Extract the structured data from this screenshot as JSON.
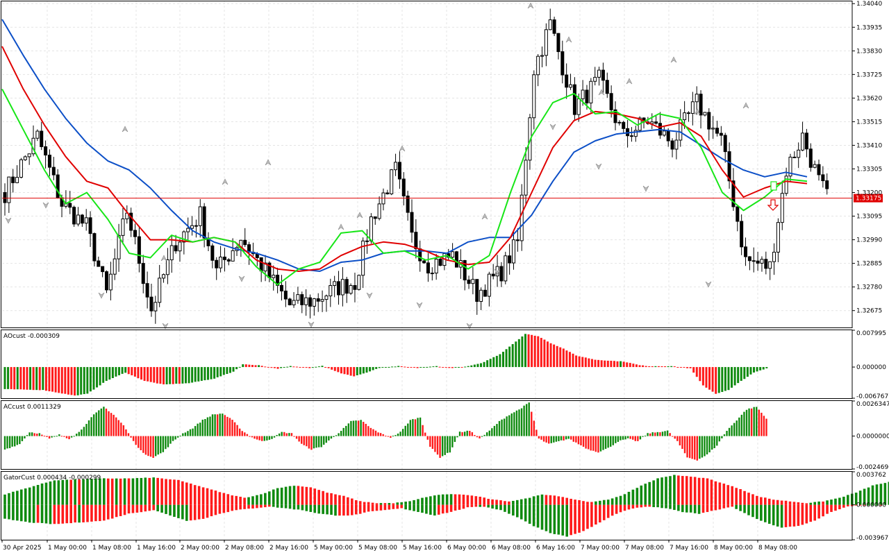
{
  "chart_data": [
    {
      "type": "candlestick",
      "title": "",
      "ylim": [
        1.326,
        1.3405
      ],
      "y_ticks": [
        "1.34040",
        "1.33935",
        "1.33830",
        "1.33725",
        "1.33620",
        "1.33515",
        "1.33410",
        "1.33305",
        "1.33200",
        "1.33095",
        "1.32990",
        "1.32885",
        "1.32780",
        "1.32675"
      ],
      "y_tick_values": [
        1.3404,
        1.33935,
        1.3383,
        1.33725,
        1.3362,
        1.33515,
        1.3341,
        1.33305,
        1.332,
        1.33095,
        1.3299,
        1.32885,
        1.3278,
        1.32675
      ],
      "current_price": 1.33175,
      "current_price_label": "1.33175",
      "x_labels": [
        "30 Apr 2025",
        "1 May 00:00",
        "1 May 08:00",
        "1 May 16:00",
        "2 May 00:00",
        "2 May 08:00",
        "2 May 16:00",
        "5 May 00:00",
        "5 May 08:00",
        "5 May 16:00",
        "6 May 00:00",
        "6 May 08:00",
        "6 May 16:00",
        "7 May 00:00",
        "7 May 08:00",
        "7 May 16:00",
        "8 May 00:00",
        "8 May 08:00"
      ],
      "anchors": [
        [
          0,
          1.332
        ],
        [
          8,
          1.3345
        ],
        [
          14,
          1.3315
        ],
        [
          20,
          1.3305
        ],
        [
          25,
          1.3275
        ],
        [
          30,
          1.3312
        ],
        [
          36,
          1.3268
        ],
        [
          42,
          1.3298
        ],
        [
          48,
          1.331
        ],
        [
          52,
          1.3285
        ],
        [
          58,
          1.33
        ],
        [
          64,
          1.3285
        ],
        [
          70,
          1.327
        ],
        [
          76,
          1.3272
        ],
        [
          82,
          1.3278
        ],
        [
          86,
          1.328
        ],
        [
          90,
          1.3308
        ],
        [
          96,
          1.333
        ],
        [
          100,
          1.33
        ],
        [
          104,
          1.3288
        ],
        [
          110,
          1.3292
        ],
        [
          116,
          1.3275
        ],
        [
          122,
          1.3285
        ],
        [
          126,
          1.3298
        ],
        [
          130,
          1.3375
        ],
        [
          134,
          1.3395
        ],
        [
          140,
          1.3358
        ],
        [
          146,
          1.337
        ],
        [
          152,
          1.3345
        ],
        [
          158,
          1.3352
        ],
        [
          164,
          1.3342
        ],
        [
          170,
          1.336
        ],
        [
          176,
          1.3343
        ],
        [
          182,
          1.329
        ],
        [
          188,
          1.3287
        ],
        [
          192,
          1.333
        ],
        [
          196,
          1.3345
        ],
        [
          200,
          1.3325
        ],
        [
          202,
          1.3318
        ]
      ],
      "series": [
        {
          "name": "blue",
          "color": "#0c4fc7",
          "values": [
            1.3397,
            1.3381,
            1.3366,
            1.3353,
            1.3342,
            1.3334,
            1.333,
            1.3322,
            1.3312,
            1.3303,
            1.3298,
            1.3295,
            1.3293,
            1.329,
            1.3286,
            1.3285,
            1.3289,
            1.329,
            1.3293,
            1.3294,
            1.3294,
            1.3293,
            1.3298,
            1.33,
            1.33,
            1.331,
            1.3325,
            1.3338,
            1.3343,
            1.3346,
            1.3347,
            1.3348,
            1.3347,
            1.3341,
            1.3335,
            1.333,
            1.3327,
            1.3329,
            1.3327
          ]
        },
        {
          "name": "red",
          "color": "#e00000",
          "values": [
            1.3385,
            1.3366,
            1.335,
            1.3336,
            1.3325,
            1.3322,
            1.331,
            1.3299,
            1.3299,
            1.3298,
            1.33,
            1.3298,
            1.329,
            1.3286,
            1.3285,
            1.3286,
            1.3292,
            1.3296,
            1.3298,
            1.3297,
            1.3294,
            1.329,
            1.3288,
            1.3289,
            1.33,
            1.332,
            1.334,
            1.3352,
            1.3356,
            1.3355,
            1.3353,
            1.3349,
            1.3351,
            1.3345,
            1.333,
            1.3318,
            1.3322,
            1.3325,
            1.3324
          ]
        },
        {
          "name": "green",
          "color": "#17e617",
          "values": [
            1.3366,
            1.3348,
            1.333,
            1.3315,
            1.332,
            1.3308,
            1.3293,
            1.3291,
            1.3301,
            1.3298,
            1.33,
            1.3298,
            1.3287,
            1.3279,
            1.3286,
            1.3289,
            1.3302,
            1.3303,
            1.3293,
            1.3294,
            1.329,
            1.3292,
            1.3286,
            1.3292,
            1.332,
            1.3345,
            1.336,
            1.3364,
            1.3355,
            1.3356,
            1.335,
            1.3355,
            1.3353,
            1.334,
            1.332,
            1.3312,
            1.3318,
            1.3326,
            1.3325
          ]
        }
      ]
    },
    {
      "type": "histogram",
      "title": "AOcust -0.000309",
      "ylim": [
        -0.006767,
        0.007995
      ],
      "y_ticks": [
        "0.007995",
        "0.000000",
        "-0.006767"
      ],
      "anchors": [
        [
          0,
          -0.0048
        ],
        [
          12,
          -0.005
        ],
        [
          22,
          -0.0062
        ],
        [
          26,
          -0.0058
        ],
        [
          32,
          -0.003
        ],
        [
          38,
          -0.0012
        ],
        [
          44,
          -0.003
        ],
        [
          50,
          -0.0038
        ],
        [
          58,
          -0.0035
        ],
        [
          66,
          -0.0025
        ],
        [
          72,
          -0.001
        ],
        [
          75,
          0.0006
        ],
        [
          80,
          0.0004
        ],
        [
          86,
          -0.0004
        ],
        [
          90,
          0.0002
        ],
        [
          96,
          -0.0002
        ],
        [
          100,
          0.0003
        ],
        [
          106,
          -0.0014
        ],
        [
          110,
          -0.002
        ],
        [
          114,
          -0.0012
        ],
        [
          118,
          -0.0002
        ],
        [
          124,
          0.0002
        ],
        [
          130,
          -0.0002
        ],
        [
          136,
          0.0002
        ],
        [
          140,
          -0.0002
        ],
        [
          144,
          -0.0001
        ],
        [
          150,
          0.0008
        ],
        [
          156,
          0.0028
        ],
        [
          160,
          0.005
        ],
        [
          164,
          0.0072
        ],
        [
          168,
          0.0067
        ],
        [
          172,
          0.0052
        ],
        [
          176,
          0.004
        ],
        [
          180,
          0.0025
        ],
        [
          186,
          0.0016
        ],
        [
          190,
          0.0014
        ],
        [
          195,
          0.0012
        ],
        [
          200,
          0.0004
        ],
        [
          203,
          0.0002
        ],
        [
          210,
          0.0002
        ],
        [
          216,
          -0.0003
        ],
        [
          220,
          -0.004
        ],
        [
          224,
          -0.0058
        ],
        [
          228,
          -0.005
        ],
        [
          232,
          -0.003
        ],
        [
          236,
          -0.0012
        ],
        [
          240,
          -0.0003
        ]
      ]
    },
    {
      "type": "histogram",
      "title": "ACcust 0.0011329",
      "ylim": [
        -0.0024696,
        0.0026347
      ],
      "y_ticks": [
        "0.0026347",
        "0.0000000",
        "-0.0024696"
      ],
      "anchors": [
        [
          0,
          -0.001
        ],
        [
          6,
          -0.0006
        ],
        [
          10,
          0.0003
        ],
        [
          14,
          0.0002
        ],
        [
          18,
          -0.0002
        ],
        [
          22,
          0.0001
        ],
        [
          26,
          -0.0002
        ],
        [
          30,
          0.0003
        ],
        [
          36,
          0.0016
        ],
        [
          40,
          0.0022
        ],
        [
          44,
          0.0016
        ],
        [
          48,
          0.0008
        ],
        [
          52,
          -0.0004
        ],
        [
          56,
          -0.0013
        ],
        [
          60,
          -0.0016
        ],
        [
          64,
          -0.0012
        ],
        [
          68,
          -0.0004
        ],
        [
          72,
          0.0002
        ],
        [
          76,
          0.0006
        ],
        [
          80,
          0.0012
        ],
        [
          84,
          0.0016
        ],
        [
          88,
          0.0017
        ],
        [
          92,
          0.0012
        ],
        [
          96,
          0.0004
        ],
        [
          100,
          -0.0001
        ],
        [
          104,
          -0.0004
        ],
        [
          108,
          -0.0002
        ],
        [
          112,
          0.0003
        ],
        [
          116,
          0.0002
        ],
        [
          120,
          -0.0006
        ],
        [
          124,
          -0.001
        ],
        [
          128,
          -0.0008
        ],
        [
          132,
          -0.0002
        ],
        [
          136,
          0.0004
        ],
        [
          140,
          0.0011
        ],
        [
          144,
          0.0012
        ],
        [
          148,
          0.0006
        ],
        [
          152,
          0.0002
        ],
        [
          156,
          -0.0001
        ],
        [
          160,
          0.0003
        ],
        [
          164,
          0.0012
        ],
        [
          168,
          0.0014
        ],
        [
          172,
          -0.0008
        ],
        [
          176,
          -0.0016
        ],
        [
          180,
          -0.0012
        ],
        [
          184,
          0.0003
        ],
        [
          188,
          0.0004
        ],
        [
          192,
          -0.0002
        ],
        [
          196,
          0.0004
        ],
        [
          200,
          0.0011
        ],
        [
          204,
          0.0016
        ],
        [
          208,
          0.002
        ],
        [
          212,
          0.0025
        ],
        [
          216,
          -0.0002
        ],
        [
          220,
          -0.0006
        ],
        [
          224,
          -0.0004
        ],
        [
          228,
          -0.0002
        ],
        [
          232,
          -0.0006
        ],
        [
          236,
          -0.001
        ],
        [
          240,
          -0.0012
        ],
        [
          244,
          -0.0009
        ],
        [
          248,
          -0.0004
        ],
        [
          252,
          -0.0002
        ],
        [
          256,
          -0.0004
        ],
        [
          260,
          0.0002
        ],
        [
          264,
          0.0003
        ],
        [
          268,
          0.0004
        ],
        [
          272,
          -0.0004
        ],
        [
          276,
          -0.0016
        ],
        [
          280,
          -0.0018
        ],
        [
          284,
          -0.0014
        ],
        [
          288,
          -0.0007
        ],
        [
          292,
          0.0004
        ],
        [
          296,
          0.0012
        ],
        [
          300,
          0.002
        ],
        [
          304,
          0.0022
        ],
        [
          308,
          0.0013
        ]
      ]
    },
    {
      "type": "histogram",
      "title": "GatorCust 0.000434 -0.000299",
      "ylim": [
        -0.003967,
        0.003762
      ],
      "y_ticks": [
        "0.003762",
        "0.000000",
        "-0.003967"
      ],
      "upper_anchors": [
        [
          0,
          0.0012
        ],
        [
          6,
          0.002
        ],
        [
          12,
          0.0028
        ],
        [
          18,
          0.0029
        ],
        [
          24,
          0.003
        ],
        [
          30,
          0.003
        ],
        [
          36,
          0.0031
        ],
        [
          42,
          0.0028
        ],
        [
          48,
          0.002
        ],
        [
          54,
          0.0012
        ],
        [
          58,
          0.0008
        ],
        [
          62,
          0.0012
        ],
        [
          66,
          0.0019
        ],
        [
          70,
          0.0022
        ],
        [
          74,
          0.002
        ],
        [
          78,
          0.0014
        ],
        [
          82,
          0.001
        ],
        [
          86,
          0.0004
        ],
        [
          90,
          0.0002
        ],
        [
          94,
          0.0002
        ],
        [
          98,
          0.0004
        ],
        [
          102,
          0.0009
        ],
        [
          106,
          0.0012
        ],
        [
          110,
          0.0012
        ],
        [
          114,
          0.001
        ],
        [
          118,
          0.0006
        ],
        [
          122,
          0.0004
        ],
        [
          126,
          0.0007
        ],
        [
          130,
          0.0012
        ],
        [
          134,
          0.001
        ],
        [
          138,
          0.0006
        ],
        [
          142,
          0.0003
        ],
        [
          146,
          0.0006
        ],
        [
          150,
          0.0012
        ],
        [
          154,
          0.0022
        ],
        [
          158,
          0.003
        ],
        [
          162,
          0.0034
        ],
        [
          166,
          0.0032
        ],
        [
          170,
          0.003
        ],
        [
          174,
          0.0024
        ],
        [
          178,
          0.0018
        ],
        [
          182,
          0.001
        ],
        [
          186,
          0.0006
        ],
        [
          190,
          0.0004
        ],
        [
          194,
          0.0002
        ],
        [
          198,
          0.0004
        ],
        [
          202,
          0.0008
        ],
        [
          206,
          0.0014
        ],
        [
          210,
          0.0022
        ],
        [
          214,
          0.0026
        ],
        [
          218,
          0.0012
        ],
        [
          222,
          0.0006
        ],
        [
          226,
          0.0005
        ]
      ],
      "lower_anchors": [
        [
          0,
          -0.0016
        ],
        [
          6,
          -0.002
        ],
        [
          12,
          -0.0022
        ],
        [
          18,
          -0.002
        ],
        [
          24,
          -0.0018
        ],
        [
          30,
          -0.001
        ],
        [
          36,
          -0.0006
        ],
        [
          40,
          -0.0012
        ],
        [
          44,
          -0.0018
        ],
        [
          48,
          -0.0016
        ],
        [
          52,
          -0.001
        ],
        [
          56,
          -0.0006
        ],
        [
          60,
          -0.0004
        ],
        [
          64,
          -0.0002
        ],
        [
          68,
          -0.0004
        ],
        [
          72,
          -0.0006
        ],
        [
          76,
          -0.001
        ],
        [
          80,
          -0.0012
        ],
        [
          84,
          -0.0012
        ],
        [
          88,
          -0.0008
        ],
        [
          92,
          -0.0006
        ],
        [
          96,
          -0.0004
        ],
        [
          100,
          -0.0008
        ],
        [
          104,
          -0.0012
        ],
        [
          108,
          -0.0008
        ],
        [
          112,
          -0.0003
        ],
        [
          116,
          -0.0002
        ],
        [
          120,
          -0.0006
        ],
        [
          124,
          -0.0014
        ],
        [
          128,
          -0.0024
        ],
        [
          132,
          -0.0032
        ],
        [
          136,
          -0.0036
        ],
        [
          140,
          -0.003
        ],
        [
          144,
          -0.002
        ],
        [
          148,
          -0.001
        ],
        [
          152,
          -0.0004
        ],
        [
          156,
          -0.0002
        ],
        [
          160,
          -0.0004
        ],
        [
          164,
          -0.0008
        ],
        [
          168,
          -0.001
        ],
        [
          172,
          -0.0006
        ],
        [
          176,
          -0.0002
        ],
        [
          180,
          -0.0012
        ],
        [
          184,
          -0.002
        ],
        [
          188,
          -0.0026
        ],
        [
          192,
          -0.0024
        ],
        [
          196,
          -0.0018
        ],
        [
          200,
          -0.0008
        ],
        [
          204,
          -0.0002
        ],
        [
          208,
          0.0
        ],
        [
          212,
          -0.0001
        ]
      ]
    }
  ]
}
